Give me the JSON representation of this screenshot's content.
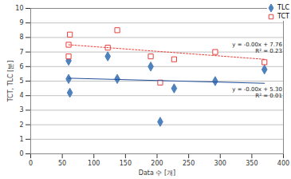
{
  "chart_data": {
    "type": "scatter",
    "x_label": "Data 수 [개]",
    "y_label": "TCT, TLC [분]",
    "xlim": [
      0,
      400
    ],
    "xticks": [
      0,
      50,
      100,
      150,
      200,
      250,
      300,
      350,
      400
    ],
    "ylim": [
      0,
      10
    ],
    "yticks": [
      0,
      1,
      2,
      3,
      4,
      5,
      6,
      7,
      8,
      9,
      10
    ],
    "grid": "y",
    "legend": "top-right",
    "series": [
      {
        "name": "TLC",
        "type": "scatter",
        "color": "#4F81BD",
        "marker": "diamond",
        "x": [
          60,
          60,
          62,
          122,
          137,
          190,
          205,
          227,
          292,
          370
        ],
        "values": [
          6.4,
          5.15,
          4.2,
          6.7,
          5.15,
          6.0,
          2.2,
          4.5,
          5.0,
          5.8
        ]
      },
      {
        "name": "TCT",
        "type": "scatter",
        "color": "#E8413C",
        "marker": "open_square",
        "x": [
          60,
          60,
          62,
          122,
          137,
          190,
          205,
          227,
          292,
          370
        ],
        "values": [
          6.7,
          7.5,
          8.2,
          7.3,
          8.5,
          6.7,
          4.9,
          6.5,
          7.0,
          6.3
        ]
      },
      {
        "type": "line",
        "color": "#E8413C",
        "line_style": "dotted",
        "x": [
          60,
          370
        ],
        "values": [
          7.5,
          6.5
        ]
      },
      {
        "type": "line",
        "color": "#1F4E9A",
        "line_style": "solid",
        "x": [
          60,
          370
        ],
        "values": [
          5.2,
          4.85
        ]
      }
    ],
    "annotations": [
      {
        "text": "y = -0.00x + 7.76",
        "x": 398,
        "y": 7.5
      },
      {
        "text": "R² = 0.23",
        "x": 398,
        "y": 7.05
      },
      {
        "text": "y = -0.00x + 5.30",
        "x": 398,
        "y": 4.45
      },
      {
        "text": "R² = 0.01",
        "x": 398,
        "y": 4.0
      }
    ]
  }
}
